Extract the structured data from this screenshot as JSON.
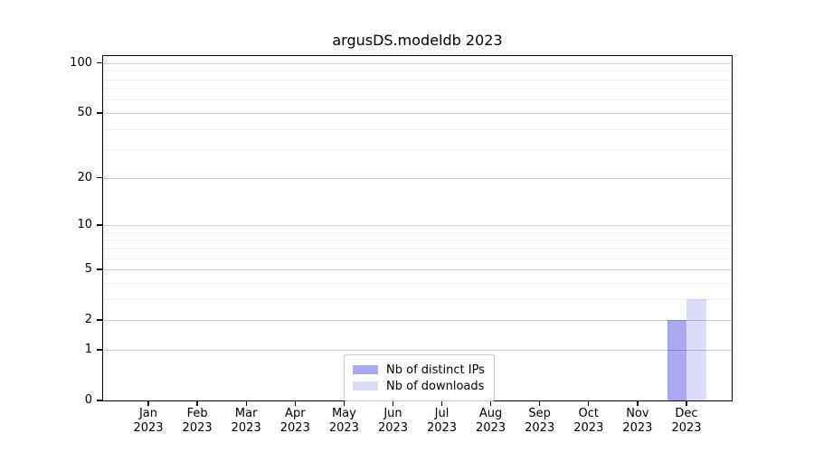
{
  "chart_data": {
    "type": "bar",
    "title": "argusDS.modeldb 2023",
    "x_categories": [
      "Jan",
      "Feb",
      "Mar",
      "Apr",
      "May",
      "Jun",
      "Jul",
      "Aug",
      "Sep",
      "Oct",
      "Nov",
      "Dec"
    ],
    "x_year": "2023",
    "series": [
      {
        "name": "Nb of distinct IPs",
        "color": "#a9a9f6",
        "values": [
          0,
          0,
          0,
          0,
          0,
          0,
          0,
          0,
          0,
          0,
          0,
          2
        ]
      },
      {
        "name": "Nb of downloads",
        "color": "#dcdcfa",
        "values": [
          0,
          0,
          0,
          0,
          0,
          0,
          0,
          0,
          0,
          0,
          0,
          3
        ]
      }
    ],
    "y_axis": {
      "scale": "log1p",
      "major_ticks": [
        0,
        1,
        2,
        5,
        10,
        20,
        50,
        100
      ],
      "minor_gridlines": [
        3,
        4,
        6,
        7,
        8,
        9,
        30,
        40,
        60,
        70,
        80,
        90
      ],
      "ylim": [
        0,
        110
      ]
    },
    "legend": {
      "location": "lower center",
      "entries": [
        "Nb of distinct IPs",
        "Nb of downloads"
      ]
    },
    "grid": true,
    "colors": {
      "spine": "#000000",
      "major_grid": "rgba(0,0,0,0.20)",
      "minor_grid": "rgba(0,0,0,0.07)",
      "background": "#ffffff"
    }
  }
}
